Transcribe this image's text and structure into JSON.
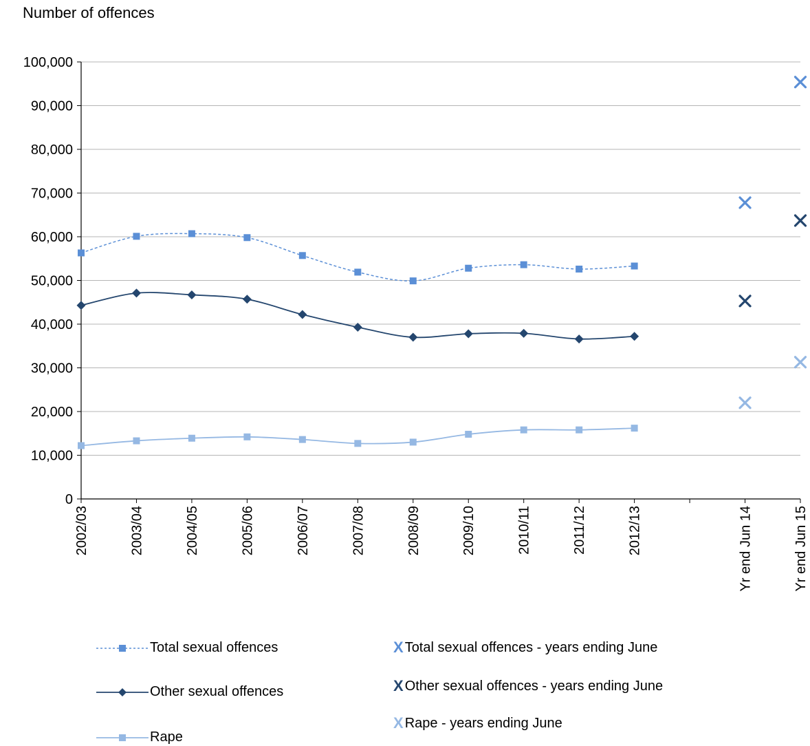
{
  "chart_data": {
    "type": "line",
    "ylabel": "Number of offences",
    "ylim": [
      0,
      100000
    ],
    "yticks": [
      "0",
      "10,000",
      "20,000",
      "30,000",
      "40,000",
      "50,000",
      "60,000",
      "70,000",
      "80,000",
      "90,000",
      "100,000"
    ],
    "grid": true,
    "categories": [
      "2002/03",
      "2003/04",
      "2004/05",
      "2005/06",
      "2006/07",
      "2007/08",
      "2008/09",
      "2009/10",
      "2010/11",
      "2011/12",
      "2012/13",
      "",
      "Yr end Jun 14",
      "Yr end Jun 15"
    ],
    "series": [
      {
        "name": "Total sexual offences",
        "style": "dashed-line-square",
        "color": "#5B8FD6",
        "values": [
          56300,
          60100,
          60700,
          59800,
          55700,
          51900,
          49900,
          52800,
          53600,
          52600,
          53300,
          null,
          null,
          null
        ]
      },
      {
        "name": "Other sexual offences",
        "style": "solid-line-diamond",
        "color": "#24466E",
        "values": [
          44300,
          47100,
          46700,
          45700,
          42200,
          39300,
          37000,
          37800,
          37900,
          36600,
          37200,
          null,
          null,
          null
        ]
      },
      {
        "name": "Rape",
        "style": "solid-line-square",
        "color": "#95B8E3",
        "values": [
          12200,
          13300,
          13900,
          14200,
          13600,
          12700,
          13000,
          14800,
          15800,
          15800,
          16200,
          null,
          null,
          null
        ]
      },
      {
        "name": "Total sexual offences - years ending June",
        "style": "x-marker",
        "color": "#5B8FD6",
        "values": [
          null,
          null,
          null,
          null,
          null,
          null,
          null,
          null,
          null,
          null,
          null,
          null,
          67800,
          95400
        ]
      },
      {
        "name": "Other sexual offences - years ending June",
        "style": "x-marker",
        "color": "#24466E",
        "values": [
          null,
          null,
          null,
          null,
          null,
          null,
          null,
          null,
          null,
          null,
          null,
          null,
          45300,
          63700
        ]
      },
      {
        "name": "Rape - years ending June",
        "style": "x-marker",
        "color": "#95B8E3",
        "values": [
          null,
          null,
          null,
          null,
          null,
          null,
          null,
          null,
          null,
          null,
          null,
          null,
          22000,
          31300
        ]
      }
    ],
    "legend_position": "bottom"
  },
  "legend": {
    "total": "Total sexual offences",
    "other": "Other sexual offences",
    "rape": "Rape",
    "total_june": "Total sexual offences - years ending June",
    "other_june": "Other sexual offences - years ending June",
    "rape_june": "Rape - years ending June",
    "x_glyph": "X"
  }
}
